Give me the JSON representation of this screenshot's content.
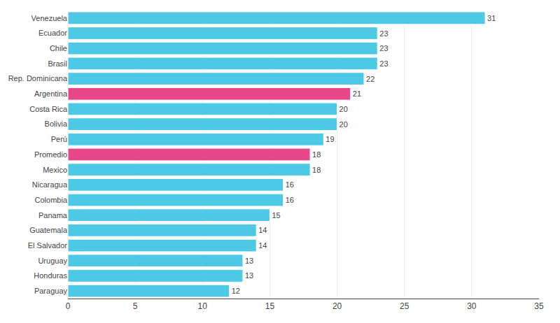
{
  "chart_data": {
    "type": "bar",
    "orientation": "horizontal",
    "categories": [
      "Venezuela",
      "Ecuador",
      "Chile",
      "Brasil",
      "Rep. Dominicana",
      "Argentina",
      "Costa Rica",
      "Bolivia",
      "Perú",
      "Promedio",
      "Mexico",
      "Nicaragua",
      "Colombia",
      "Panama",
      "Guatemala",
      "El Salvador",
      "Uruguay",
      "Honduras",
      "Paraguay"
    ],
    "values": [
      31,
      23,
      23,
      23,
      22,
      21,
      20,
      20,
      19,
      18,
      18,
      16,
      16,
      15,
      14,
      14,
      13,
      13,
      12
    ],
    "colors": [
      "#4dc9e6",
      "#4dc9e6",
      "#4dc9e6",
      "#4dc9e6",
      "#4dc9e6",
      "#e8488a",
      "#4dc9e6",
      "#4dc9e6",
      "#4dc9e6",
      "#e8488a",
      "#4dc9e6",
      "#4dc9e6",
      "#4dc9e6",
      "#4dc9e6",
      "#4dc9e6",
      "#4dc9e6",
      "#4dc9e6",
      "#4dc9e6",
      "#4dc9e6"
    ],
    "xlim": [
      0,
      35
    ],
    "xticks": [
      0,
      5,
      10,
      15,
      20,
      25,
      30,
      35
    ],
    "grid": true,
    "data_labels": true
  }
}
